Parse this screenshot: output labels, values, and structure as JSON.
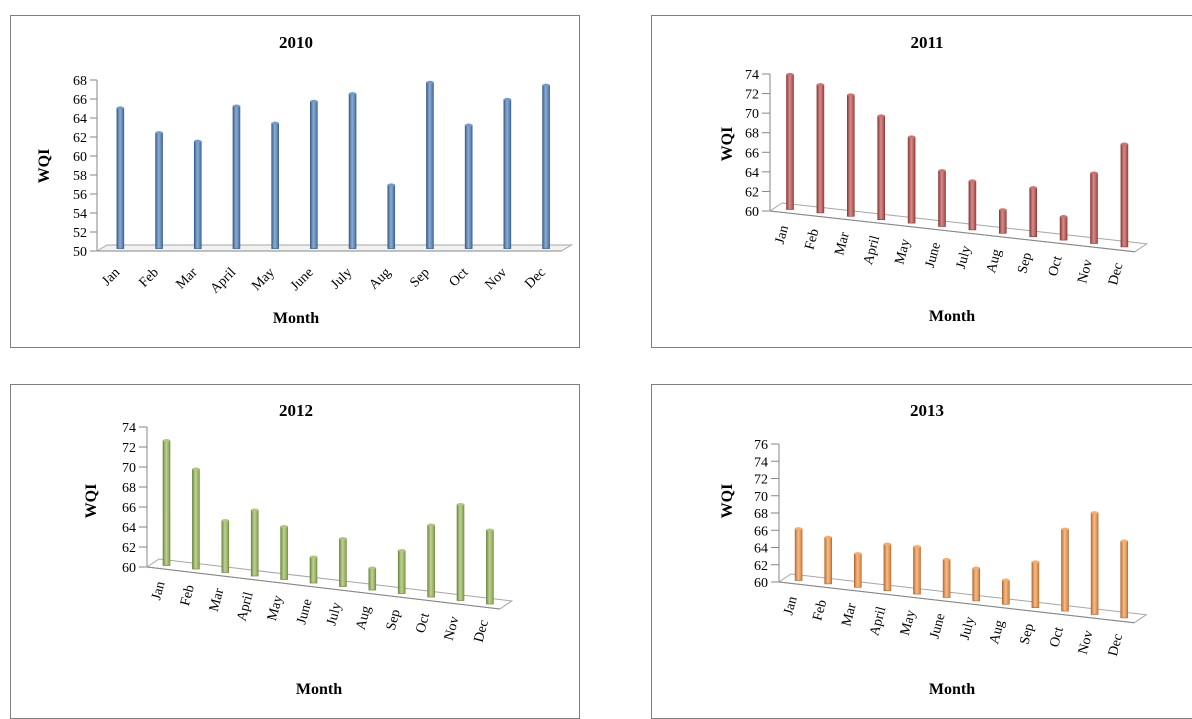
{
  "chart_data": [
    {
      "type": "bar",
      "title": "2010",
      "xlabel": "Month",
      "ylabel": "WQI",
      "ylim": [
        50,
        68
      ],
      "yticks": [
        50,
        52,
        54,
        56,
        58,
        60,
        62,
        64,
        66,
        68
      ],
      "categories": [
        "Jan",
        "Feb",
        "Mar",
        "April",
        "May",
        "June",
        "July",
        "Aug",
        "Sep",
        "Oct",
        "Nov",
        "Dec"
      ],
      "values": [
        64.8,
        62.2,
        61.3,
        65.0,
        63.2,
        65.5,
        66.3,
        56.7,
        67.5,
        63.0,
        65.7,
        67.2
      ],
      "color": "#4f81bd",
      "style": "flat"
    },
    {
      "type": "bar",
      "title": "2011",
      "xlabel": "Month",
      "ylabel": "WQI",
      "ylim": [
        60,
        74
      ],
      "yticks": [
        60,
        62,
        64,
        66,
        68,
        70,
        72,
        74
      ],
      "categories": [
        "Jan",
        "Feb",
        "Mar",
        "April",
        "May",
        "June",
        "July",
        "Aug",
        "Sep",
        "Oct",
        "Nov",
        "Dec"
      ],
      "values": [
        73.8,
        73.1,
        72.4,
        70.6,
        68.8,
        65.7,
        65.0,
        62.4,
        65.0,
        62.4,
        67.2,
        70.5
      ],
      "color": "#c0504d",
      "style": "perspective"
    },
    {
      "type": "bar",
      "title": "2012",
      "xlabel": "Month",
      "ylabel": "WQI",
      "ylim": [
        60,
        74
      ],
      "yticks": [
        60,
        62,
        64,
        66,
        68,
        70,
        72,
        74
      ],
      "categories": [
        "Jan",
        "Feb",
        "Mar",
        "April",
        "May",
        "June",
        "July",
        "Aug",
        "Sep",
        "Oct",
        "Nov",
        "Dec"
      ],
      "values": [
        72.5,
        70.0,
        65.2,
        66.6,
        65.3,
        62.6,
        64.8,
        62.2,
        64.3,
        67.2,
        69.6,
        67.4
      ],
      "color": "#9bbb59",
      "style": "perspective"
    },
    {
      "type": "bar",
      "title": "2013",
      "xlabel": "Month",
      "ylabel": "WQI",
      "ylim": [
        60,
        76
      ],
      "yticks": [
        60,
        62,
        64,
        66,
        68,
        70,
        72,
        74,
        76
      ],
      "categories": [
        "Jan",
        "Feb",
        "Mar",
        "April",
        "May",
        "June",
        "July",
        "Aug",
        "Sep",
        "Oct",
        "Nov",
        "Dec"
      ],
      "values": [
        66.0,
        65.4,
        63.9,
        65.4,
        65.5,
        64.4,
        63.8,
        62.8,
        65.3,
        69.5,
        71.8,
        68.9
      ],
      "color": "#f79646",
      "style": "perspective"
    }
  ]
}
